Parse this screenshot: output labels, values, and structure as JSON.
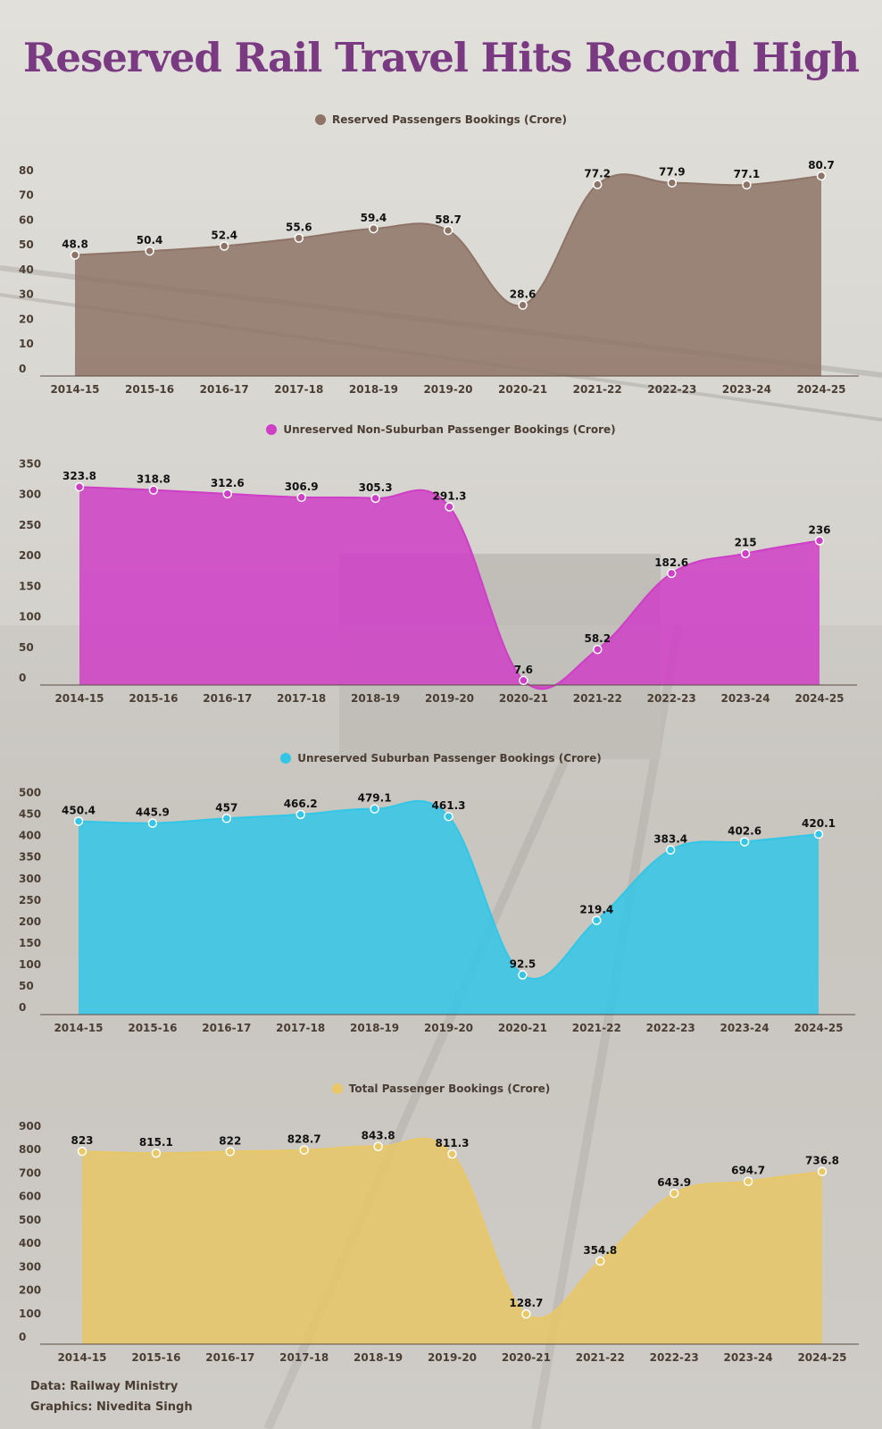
{
  "title": "Reserved Rail Travel Hits Record High",
  "source": {
    "data": "Data: Railway Ministry",
    "graphics": "Graphics: Nivedita Singh"
  },
  "chart_data": [
    {
      "type": "area",
      "legend": "Reserved Passengers Bookings (Crore)",
      "color": "#8e7466",
      "categories": [
        "2014-15",
        "2015-16",
        "2016-17",
        "2017-18",
        "2018-19",
        "2019-20",
        "2020-21",
        "2021-22",
        "2022-23",
        "2023-24",
        "2024-25"
      ],
      "values": [
        48.8,
        50.4,
        52.4,
        55.6,
        59.4,
        58.7,
        28.6,
        77.2,
        77.9,
        77.1,
        80.7
      ],
      "yticks": [
        0,
        10,
        20,
        30,
        40,
        50,
        60,
        70,
        80
      ],
      "ylim": [
        0,
        85
      ]
    },
    {
      "type": "area",
      "legend": "Unreserved Non-Suburban Passenger Bookings (Crore)",
      "color": "#cf3ec6",
      "categories": [
        "2014-15",
        "2015-16",
        "2016-17",
        "2017-18",
        "2018-19",
        "2019-20",
        "2020-21",
        "2021-22",
        "2022-23",
        "2023-24",
        "2024-25"
      ],
      "values": [
        323.8,
        318.8,
        312.6,
        306.9,
        305.3,
        291.3,
        7.6,
        58.2,
        182.6,
        215,
        236
      ],
      "yticks": [
        0,
        50,
        100,
        150,
        200,
        250,
        300,
        350
      ],
      "ylim": [
        0,
        365
      ]
    },
    {
      "type": "area",
      "legend": "Unreserved Suburban Passenger Bookings (Crore)",
      "color": "#33c6e6",
      "categories": [
        "2014-15",
        "2015-16",
        "2016-17",
        "2017-18",
        "2018-19",
        "2019-20",
        "2020-21",
        "2021-22",
        "2022-23",
        "2023-24",
        "2024-25"
      ],
      "values": [
        450.4,
        445.9,
        457,
        466.2,
        479.1,
        461.3,
        92.5,
        219.4,
        383.4,
        402.6,
        420.1
      ],
      "yticks": [
        0,
        50,
        100,
        150,
        200,
        250,
        300,
        350,
        400,
        450,
        500
      ],
      "ylim": [
        0,
        520
      ]
    },
    {
      "type": "area",
      "legend": "Total Passenger Bookings (Crore)",
      "color": "#e8c766",
      "categories": [
        "2014-15",
        "2015-16",
        "2016-17",
        "2017-18",
        "2018-19",
        "2019-20",
        "2020-21",
        "2021-22",
        "2022-23",
        "2023-24",
        "2024-25"
      ],
      "values": [
        823,
        815.1,
        822,
        828.7,
        843.8,
        811.3,
        128.7,
        354.8,
        643.9,
        694.7,
        736.8
      ],
      "yticks": [
        0,
        100,
        200,
        300,
        400,
        500,
        600,
        700,
        800,
        900
      ],
      "ylim": [
        0,
        930
      ]
    }
  ]
}
